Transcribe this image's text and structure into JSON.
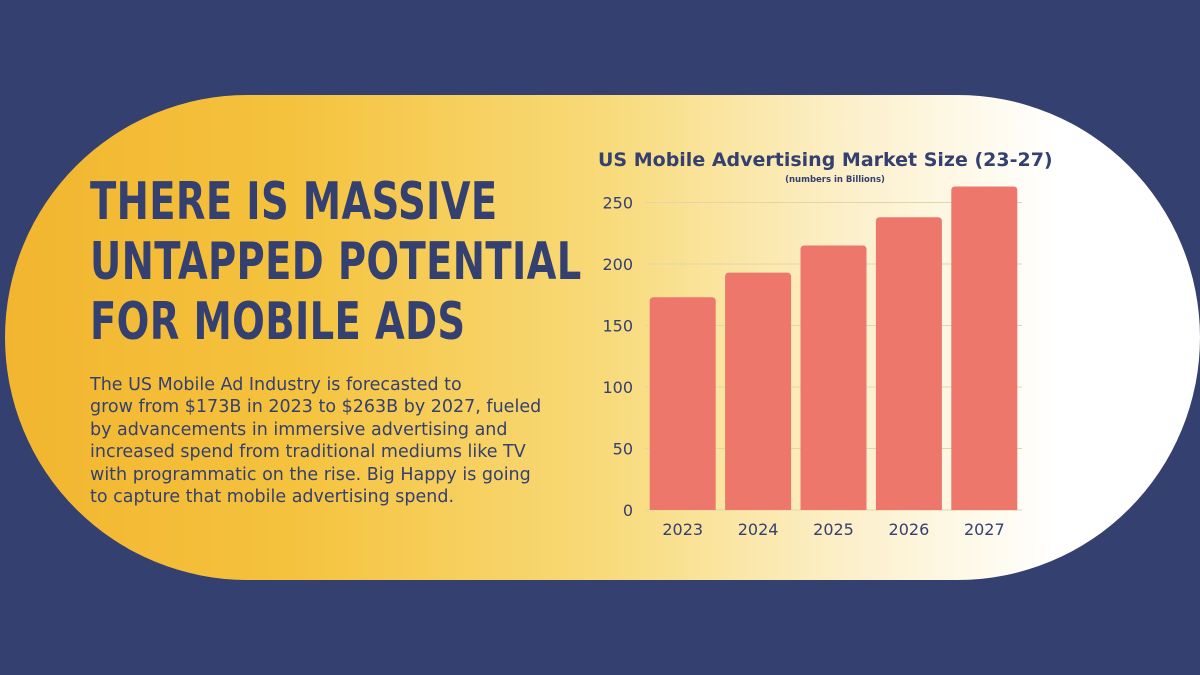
{
  "headline": {
    "lines": [
      "THERE IS MASSIVE",
      "UNTAPPED POTENTIAL",
      "FOR MOBILE ADS"
    ]
  },
  "body": {
    "lines": [
      "The US Mobile Ad Industry is forecasted to",
      "grow from $173B in 2023 to $263B by 2027, fueled",
      "by advancements in immersive advertising and",
      "increased spend from traditional mediums like TV",
      "with programmatic on the rise.  Big Happy is going",
      "to capture that mobile advertising spend."
    ]
  },
  "colors": {
    "background": "#344070",
    "text": "#344070",
    "bar": "#ec776a",
    "pill_left": "#f2b52f",
    "pill_right": "#ffffff"
  },
  "chart_data": {
    "type": "bar",
    "title": "US Mobile Advertising Market Size (23-27)",
    "subtitle": "(numbers in Billions)",
    "xlabel": "",
    "ylabel": "",
    "categories": [
      "2023",
      "2024",
      "2025",
      "2026",
      "2027"
    ],
    "values": [
      173,
      193,
      215,
      238,
      263
    ],
    "ylim": [
      0,
      250
    ],
    "yticks": [
      0,
      50,
      100,
      150,
      200,
      250
    ],
    "grid": true,
    "legend": "none"
  }
}
